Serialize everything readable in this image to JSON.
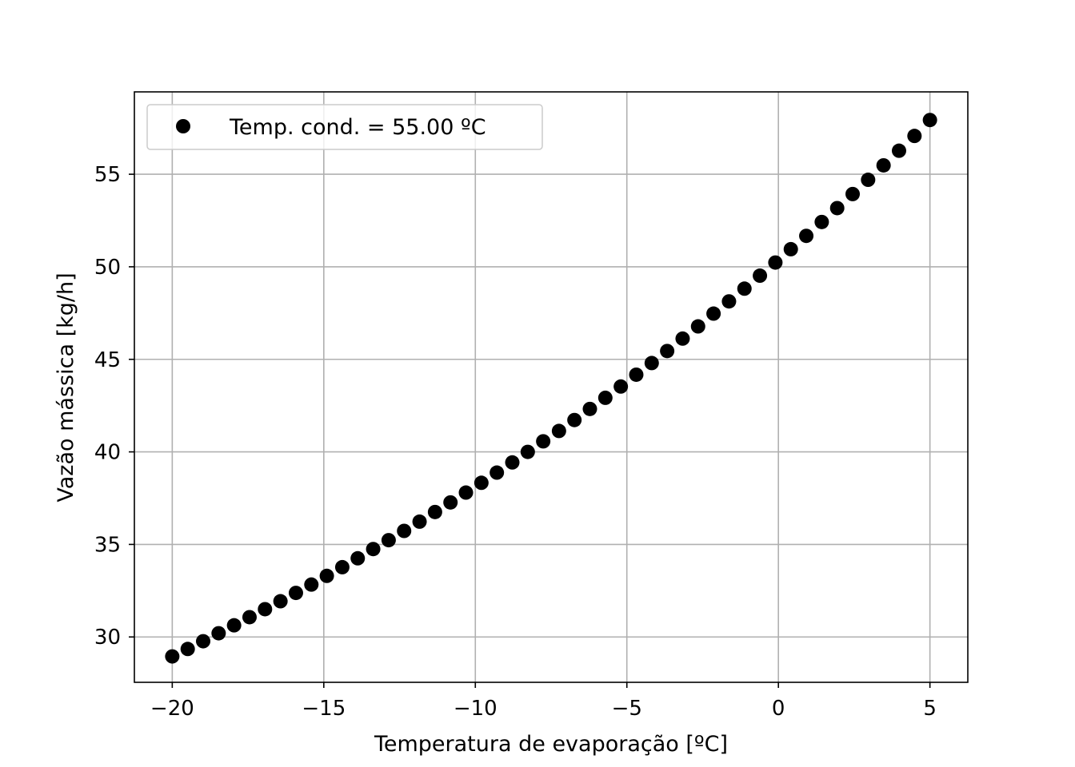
{
  "chart_data": {
    "type": "scatter",
    "xlabel": "Temperatura de evaporação [ºC]",
    "ylabel": "Vazão mássica [kg/h]",
    "xlim": [
      -21.25,
      6.25
    ],
    "ylim": [
      27.55,
      59.45
    ],
    "xticks": [
      -20,
      -15,
      -10,
      -5,
      0,
      5
    ],
    "xtick_labels": [
      "−20",
      "−15",
      "−10",
      "−5",
      "0",
      "5"
    ],
    "yticks": [
      30,
      35,
      40,
      45,
      50,
      55
    ],
    "ytick_labels": [
      "30",
      "35",
      "40",
      "45",
      "50",
      "55"
    ],
    "grid": true,
    "legend_position": "upper-left",
    "marker_color": "#000000",
    "grid_color": "#b0b0b0",
    "series": [
      {
        "name": "Temp. cond. = 55.00 ºC",
        "x": [
          -20.0,
          -19.49,
          -18.98,
          -18.47,
          -17.96,
          -17.45,
          -16.94,
          -16.43,
          -15.92,
          -15.41,
          -14.9,
          -14.39,
          -13.88,
          -13.37,
          -12.86,
          -12.35,
          -11.84,
          -11.33,
          -10.82,
          -10.31,
          -9.8,
          -9.29,
          -8.78,
          -8.27,
          -7.76,
          -7.24,
          -6.73,
          -6.22,
          -5.71,
          -5.2,
          -4.69,
          -4.18,
          -3.67,
          -3.16,
          -2.65,
          -2.14,
          -1.63,
          -1.12,
          -0.61,
          -0.1,
          0.41,
          0.92,
          1.43,
          1.94,
          2.45,
          2.96,
          3.47,
          3.98,
          4.49,
          5.0
        ],
        "y": [
          28.95,
          29.35,
          29.77,
          30.2,
          30.63,
          31.07,
          31.5,
          31.93,
          32.38,
          32.83,
          33.3,
          33.77,
          34.25,
          34.75,
          35.23,
          35.73,
          36.23,
          36.75,
          37.27,
          37.8,
          38.33,
          38.88,
          39.43,
          40.0,
          40.57,
          41.13,
          41.72,
          42.32,
          42.92,
          43.53,
          44.17,
          44.8,
          45.45,
          46.12,
          46.78,
          47.47,
          48.13,
          48.82,
          49.52,
          50.23,
          50.95,
          51.67,
          52.42,
          53.17,
          53.93,
          54.7,
          55.48,
          56.27,
          57.07,
          57.93
        ]
      }
    ]
  }
}
